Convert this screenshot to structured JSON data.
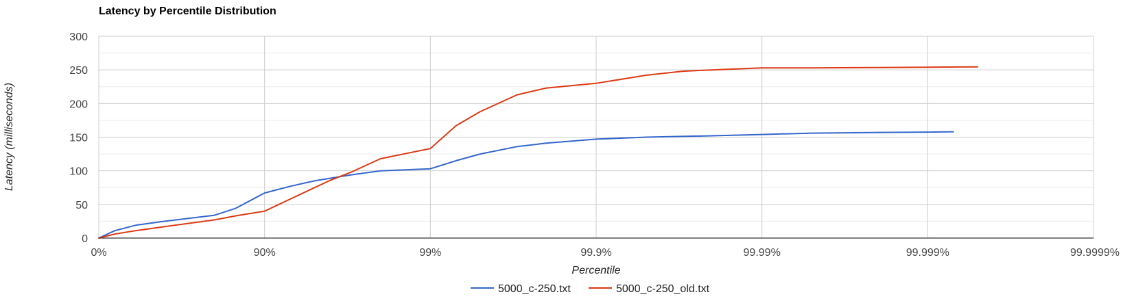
{
  "chart_data": {
    "type": "line",
    "title": "Latency by Percentile Distribution",
    "xlabel": "Percentile",
    "ylabel": "Latency (milliseconds)",
    "x_scale": "log-nines",
    "x_ticks": [
      "0%",
      "90%",
      "99%",
      "99.9%",
      "99.99%",
      "99.999%",
      "99.9999%"
    ],
    "y_ticks": [
      "0",
      "50",
      "100",
      "150",
      "200",
      "250",
      "300"
    ],
    "ylim": [
      0,
      300
    ],
    "grid": true,
    "legend_position": "bottom",
    "series": [
      {
        "name": "5000_c-250.txt",
        "color": "#3366cc",
        "points": [
          [
            0,
            0
          ],
          [
            20,
            11
          ],
          [
            40,
            19
          ],
          [
            60,
            25
          ],
          [
            80,
            34
          ],
          [
            85,
            44
          ],
          [
            90,
            67
          ],
          [
            93,
            77
          ],
          [
            95,
            85
          ],
          [
            96,
            89
          ],
          [
            97,
            94
          ],
          [
            98,
            100
          ],
          [
            99,
            103
          ],
          [
            99.3,
            115
          ],
          [
            99.5,
            125
          ],
          [
            99.7,
            136
          ],
          [
            99.8,
            141
          ],
          [
            99.9,
            147
          ],
          [
            99.95,
            150
          ],
          [
            99.98,
            152
          ],
          [
            99.99,
            154
          ],
          [
            99.995,
            156
          ],
          [
            99.998,
            157
          ],
          [
            99.999,
            157.5
          ],
          [
            99.9993,
            158
          ]
        ]
      },
      {
        "name": "5000_c-250_old.txt",
        "color": "#dc3912",
        "points": [
          [
            0,
            0
          ],
          [
            20,
            6
          ],
          [
            40,
            11
          ],
          [
            60,
            17
          ],
          [
            80,
            27
          ],
          [
            85,
            33
          ],
          [
            90,
            40
          ],
          [
            93,
            58
          ],
          [
            95,
            75
          ],
          [
            96,
            86
          ],
          [
            97,
            98
          ],
          [
            98,
            118
          ],
          [
            99,
            133
          ],
          [
            99.3,
            167
          ],
          [
            99.5,
            188
          ],
          [
            99.7,
            213
          ],
          [
            99.8,
            223
          ],
          [
            99.9,
            230
          ],
          [
            99.95,
            242
          ],
          [
            99.97,
            248
          ],
          [
            99.98,
            250
          ],
          [
            99.99,
            253
          ],
          [
            99.995,
            253
          ],
          [
            99.998,
            253.5
          ],
          [
            99.999,
            254
          ],
          [
            99.9995,
            254.5
          ]
        ]
      }
    ]
  }
}
